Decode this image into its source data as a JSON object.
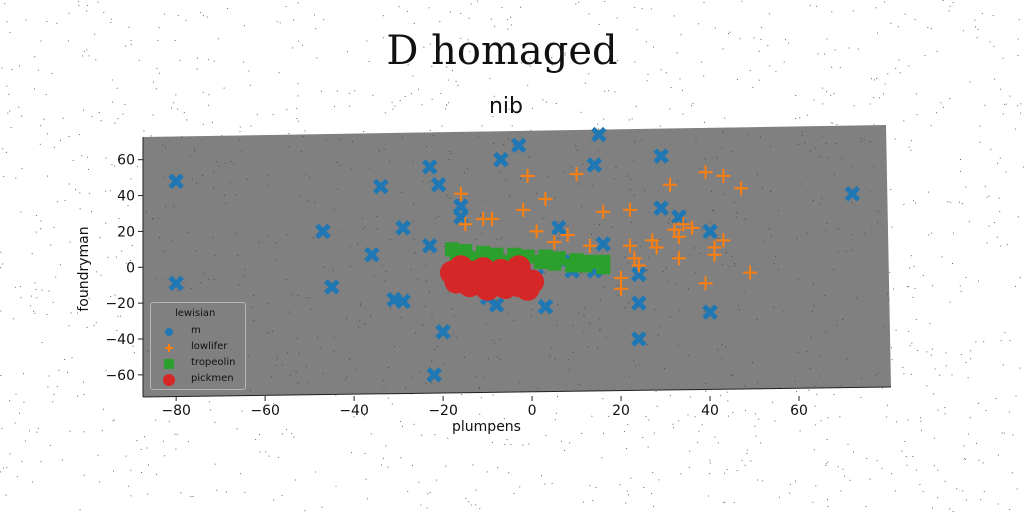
{
  "figure": {
    "suptitle": "D homaged"
  },
  "chart_data": {
    "type": "scatter",
    "title": "nib",
    "xlabel": "plumpens",
    "ylabel": "foundryman",
    "xlim": [
      -87,
      80
    ],
    "ylim": [
      -69,
      76
    ],
    "xticks": [
      -80,
      -60,
      -40,
      -20,
      0,
      20,
      40,
      60
    ],
    "yticks": [
      -60,
      -40,
      -20,
      0,
      20,
      40,
      60
    ],
    "background_color": "#808080",
    "grid": false,
    "legend": {
      "title": "lewisian",
      "placement": "lower-left"
    },
    "series": [
      {
        "name": "m",
        "marker": "X",
        "color": "#1f77b4",
        "points": [
          [
            -80,
            48
          ],
          [
            -80,
            -9
          ],
          [
            -34,
            45
          ],
          [
            -47,
            20
          ],
          [
            -45,
            -11
          ],
          [
            -36,
            7
          ],
          [
            -31,
            -18
          ],
          [
            -29,
            -19
          ],
          [
            -29,
            22
          ],
          [
            -23,
            56
          ],
          [
            -23,
            12
          ],
          [
            -21,
            46
          ],
          [
            -20,
            -36
          ],
          [
            -22,
            -60
          ],
          [
            -16,
            34
          ],
          [
            -16,
            28
          ],
          [
            -13,
            0
          ],
          [
            -10,
            -17
          ],
          [
            -8,
            -21
          ],
          [
            -7,
            60
          ],
          [
            -3,
            68
          ],
          [
            -2,
            3
          ],
          [
            1,
            -5
          ],
          [
            3,
            -22
          ],
          [
            7,
            3
          ],
          [
            6,
            22
          ],
          [
            9,
            -2
          ],
          [
            14,
            57
          ],
          [
            15,
            74
          ],
          [
            14,
            -2
          ],
          [
            16,
            13
          ],
          [
            24,
            -4
          ],
          [
            24,
            -20
          ],
          [
            24,
            -40
          ],
          [
            29,
            62
          ],
          [
            29,
            33
          ],
          [
            33,
            28
          ],
          [
            40,
            20
          ],
          [
            40,
            -25
          ],
          [
            72,
            41
          ]
        ]
      },
      {
        "name": "lowlifer",
        "marker": "+",
        "color": "#ff7f0e",
        "points": [
          [
            -16,
            41
          ],
          [
            -15,
            24
          ],
          [
            -11,
            27
          ],
          [
            -9,
            27
          ],
          [
            -2,
            32
          ],
          [
            -1,
            51
          ],
          [
            1,
            20
          ],
          [
            3,
            38
          ],
          [
            5,
            14
          ],
          [
            8,
            18
          ],
          [
            10,
            52
          ],
          [
            13,
            12
          ],
          [
            16,
            31
          ],
          [
            20,
            -6
          ],
          [
            20,
            -12
          ],
          [
            22,
            32
          ],
          [
            22,
            12
          ],
          [
            23,
            5
          ],
          [
            24,
            1
          ],
          [
            27,
            15
          ],
          [
            28,
            11
          ],
          [
            31,
            46
          ],
          [
            32,
            21
          ],
          [
            33,
            17
          ],
          [
            33,
            5
          ],
          [
            34,
            24
          ],
          [
            36,
            22
          ],
          [
            39,
            -9
          ],
          [
            39,
            53
          ],
          [
            41,
            11
          ],
          [
            41,
            7
          ],
          [
            43,
            51
          ],
          [
            43,
            15
          ],
          [
            47,
            44
          ],
          [
            49,
            -3
          ]
        ]
      },
      {
        "name": "tropeolin",
        "marker": "s",
        "color": "#2ca02c",
        "points": [
          [
            -18,
            10
          ],
          [
            -15,
            9
          ],
          [
            -11,
            8
          ],
          [
            -8,
            7
          ],
          [
            -4,
            7
          ],
          [
            -1,
            6
          ],
          [
            3,
            6
          ],
          [
            6,
            5
          ],
          [
            10,
            4
          ],
          [
            13,
            3
          ],
          [
            16,
            3
          ],
          [
            -17,
            5
          ],
          [
            -13,
            5
          ],
          [
            -9,
            4
          ],
          [
            -5,
            3
          ],
          [
            -2,
            3
          ],
          [
            2,
            3
          ],
          [
            5,
            2
          ],
          [
            9,
            1
          ],
          [
            12,
            1
          ],
          [
            16,
            0
          ]
        ]
      },
      {
        "name": "pickmen",
        "marker": "o",
        "color": "#d62728",
        "points": [
          [
            -18,
            -3
          ],
          [
            -17,
            -8
          ],
          [
            -16,
            0
          ],
          [
            -15,
            -5
          ],
          [
            -14,
            -10
          ],
          [
            -13,
            -3
          ],
          [
            -12,
            -7
          ],
          [
            -11,
            -1
          ],
          [
            -10,
            -12
          ],
          [
            -9,
            -5
          ],
          [
            -8,
            -9
          ],
          [
            -7,
            -2
          ],
          [
            -6,
            -11
          ],
          [
            -5,
            -6
          ],
          [
            -4,
            -3
          ],
          [
            -3,
            -10
          ],
          [
            -3,
            0
          ],
          [
            -2,
            -7
          ],
          [
            -1,
            -12
          ],
          [
            0,
            -8
          ]
        ]
      }
    ]
  }
}
